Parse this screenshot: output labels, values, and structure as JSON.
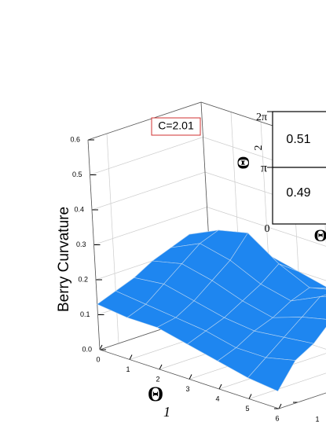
{
  "chart_data": {
    "type": "surface3d",
    "zlabel": "Berry Curvature",
    "xlabel": "Θ",
    "xlabel_sub": "1",
    "annotation": "C=2.01",
    "color": "#1e86f0",
    "grid": true,
    "xlim": [
      0,
      6
    ],
    "xticks": [
      0,
      1,
      2,
      3,
      4,
      5,
      6
    ],
    "ylim": [
      0,
      6
    ],
    "yticks": [
      0,
      1
    ],
    "zlim": [
      0,
      0.6
    ],
    "zticks": [
      {
        "value": 0,
        "label": "0.0"
      },
      0.1,
      0.2,
      0.3,
      0.4,
      0.5,
      0.6
    ],
    "x": [
      0,
      1,
      2,
      3,
      4,
      5,
      6
    ],
    "y": [
      0,
      1,
      2,
      3,
      4,
      5,
      6
    ],
    "z": [
      [
        0.13,
        0.12,
        0.12,
        0.1,
        0.08,
        0.06,
        0.05
      ],
      [
        0.15,
        0.14,
        0.13,
        0.12,
        0.1,
        0.1,
        0.12
      ],
      [
        0.17,
        0.18,
        0.16,
        0.14,
        0.13,
        0.14,
        0.15
      ],
      [
        0.2,
        0.22,
        0.2,
        0.17,
        0.15,
        0.18,
        0.2
      ],
      [
        0.22,
        0.26,
        0.24,
        0.2,
        0.18,
        0.22,
        0.25
      ],
      [
        0.24,
        0.28,
        0.3,
        0.24,
        0.2,
        0.22,
        0.2
      ],
      [
        0.2,
        0.25,
        0.22,
        0.2,
        0.18,
        0.2,
        0.2
      ]
    ]
  },
  "inset": {
    "ylabel": "Θ",
    "ylabel_sub": "2",
    "xlabel": "Θ",
    "yticks": [
      "0",
      "π",
      "2π"
    ],
    "cells": [
      0.51,
      0.49
    ]
  }
}
